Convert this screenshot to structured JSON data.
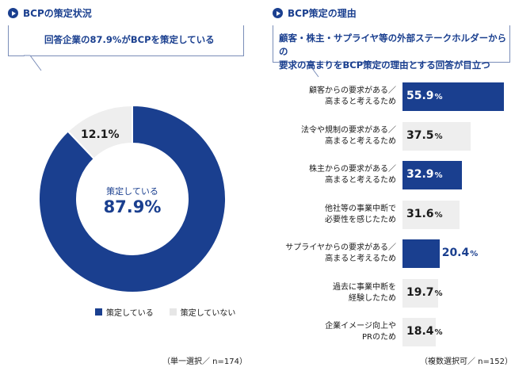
{
  "left": {
    "title": "BCPの策定状況",
    "callout": "回答企業の87.9%がBCPを策定している",
    "center_label": "策定している",
    "center_value": "87.9%",
    "slice_label": "12.1%",
    "footnote": "（単一選択／ n=174）"
  },
  "right": {
    "title": "BCP策定の理由",
    "callout_line1": "顧客・株主・サプライヤ等の外部ステークホルダーからの",
    "callout_line2": "要求の高まりをBCP策定の理由とする回答が目立つ",
    "footnote": "（複数選択可／ n=152）"
  },
  "colors": {
    "primary": "#1a3f8f",
    "secondary": "#eeeeee"
  },
  "chart_data": [
    {
      "type": "pie",
      "title": "BCPの策定状況",
      "categories": [
        "策定している",
        "策定していない"
      ],
      "values": [
        87.9,
        12.1
      ],
      "unit": "%",
      "legend_position": "bottom"
    },
    {
      "type": "bar",
      "orientation": "horizontal",
      "title": "BCP策定の理由",
      "categories": [
        [
          "顧客からの要求がある／",
          "高まると考えるため"
        ],
        [
          "法令や規制の要求がある／",
          "高まると考えるため"
        ],
        [
          "株主からの要求がある／",
          "高まると考えるため"
        ],
        [
          "他社等の事業中断で",
          "必要性を感じたため"
        ],
        [
          "サプライヤからの要求がある／",
          "高まると考えるため"
        ],
        [
          "過去に事業中断を",
          "経験したため"
        ],
        [
          "企業イメージ向上や",
          "PRのため"
        ]
      ],
      "values": [
        55.9,
        37.5,
        32.9,
        31.6,
        20.4,
        19.7,
        18.4
      ],
      "highlight": [
        true,
        false,
        true,
        false,
        true,
        false,
        false
      ],
      "unit": "%",
      "xlim": [
        0,
        60
      ]
    }
  ]
}
